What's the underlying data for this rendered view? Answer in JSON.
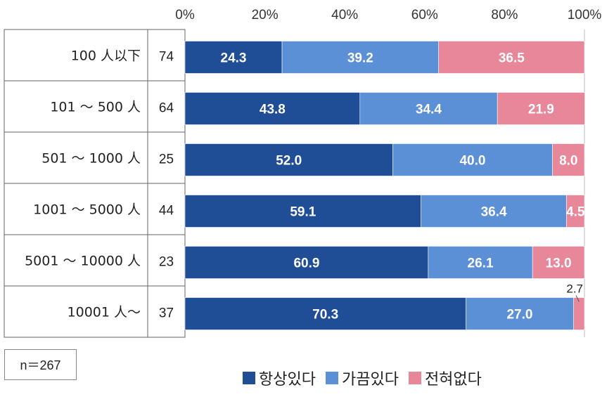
{
  "chart_data": {
    "type": "bar",
    "orientation": "horizontal",
    "stacked": true,
    "percent": true,
    "xlim": [
      0,
      100
    ],
    "xticks": [
      "0%",
      "20%",
      "40%",
      "60%",
      "80%",
      "100%"
    ],
    "categories": [
      "100 人以下",
      "101 ～ 500 人",
      "501 ～ 1000 人",
      "1001 ～ 5000 人",
      "5001 ～ 10000 人",
      "10001 人～"
    ],
    "counts": [
      "74",
      "64",
      "25",
      "44",
      "23",
      "37"
    ],
    "series": [
      {
        "name": "항상있다",
        "color": "#1f4e96",
        "values": [
          24.3,
          43.8,
          52.0,
          59.1,
          60.9,
          70.3
        ],
        "labels": [
          "24.3",
          "43.8",
          "52.0",
          "59.1",
          "60.9",
          "70.3"
        ]
      },
      {
        "name": "가끔있다",
        "color": "#5b8fd6",
        "values": [
          39.2,
          34.4,
          40.0,
          36.4,
          26.1,
          27.0
        ],
        "labels": [
          "39.2",
          "34.4",
          "40.0",
          "36.4",
          "26.1",
          "27.0"
        ]
      },
      {
        "name": "전혀없다",
        "color": "#e8879a",
        "values": [
          36.5,
          21.9,
          8.0,
          4.5,
          13.0,
          2.7
        ],
        "labels": [
          "36.5",
          "21.9",
          "8.0",
          "4.5",
          "13.0",
          "2.7"
        ]
      }
    ],
    "outside_labels": [
      {
        "row": 5,
        "series": 2
      }
    ],
    "n_label": "n＝267"
  }
}
